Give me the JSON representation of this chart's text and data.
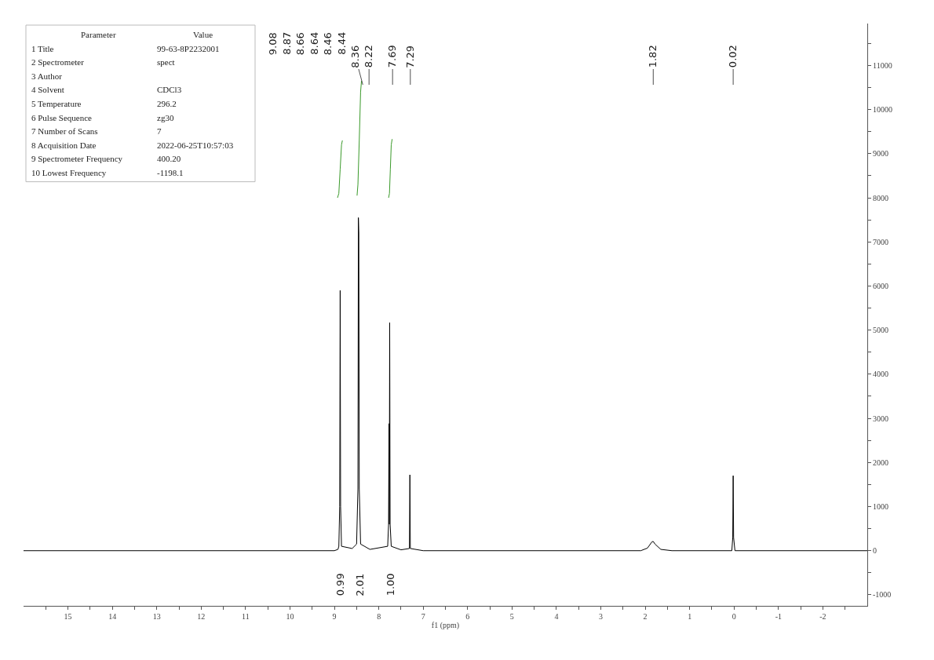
{
  "chart_data": {
    "type": "line",
    "xlabel": "f1 (ppm)",
    "annotations": [
      "9.08",
      "8.87",
      "8.66",
      "8.64",
      "8.46",
      "8.44",
      {
        "text": "8.36",
        "x": 8.36
      },
      {
        "text": "8.22",
        "x": 8.22
      },
      {
        "text": "7.69",
        "x": 7.69
      },
      {
        "text": "7.29",
        "x": 7.29
      },
      {
        "text": "1.82",
        "x": 1.82
      },
      {
        "text": "0.02",
        "x": 0.02
      },
      "0.99",
      "2.01",
      "1.00",
      "Parameter\tValue",
      "1 Title\t99-63-8P2232001",
      "2 Spectrometer\tspect",
      "3 Author",
      "4 Solvent\tCDCl3",
      "5 Temperature\t296.2",
      "6 Pulse Sequence\tzg30",
      "7 Number of Scans\t7",
      "8 Acquisition Date\t2022-06-25T10:57:03",
      "9 Spectrometer Frequency\t400.20",
      "10 Lowest Frequency\t-1198.1"
    ],
    "series": [
      {
        "color": "#000000",
        "x": [
          16,
          9.0,
          8.92,
          8.9,
          8.88,
          8.87,
          8.86,
          8.84,
          8.6,
          8.5,
          8.47,
          8.46,
          8.45,
          8.44,
          8.41,
          8.2,
          7.8,
          7.78,
          7.77,
          7.765,
          7.76,
          7.755,
          7.745,
          7.72,
          7.5,
          7.31,
          7.3,
          7.29,
          7.0,
          2.1,
          1.95,
          1.85,
          1.82,
          1.78,
          1.65,
          1.4,
          0.05,
          0.03,
          0.02,
          0.01,
          -0.02,
          -3
        ],
        "values": [
          0,
          0,
          30,
          100,
          1000,
          5900,
          1000,
          100,
          50,
          150,
          1400,
          7550,
          7200,
          1400,
          150,
          30,
          100,
          600,
          2880,
          600,
          2520,
          5170,
          600,
          100,
          20,
          50,
          1720,
          50,
          0,
          0,
          60,
          200,
          210,
          150,
          30,
          0,
          0,
          300,
          1700,
          300,
          0,
          0
        ]
      },
      {
        "color": "#3a9a2a",
        "x": [
          8.93,
          8.9,
          8.87,
          8.84,
          8.82
        ],
        "values": [
          8000,
          8100,
          8650,
          9200,
          9300
        ]
      },
      {
        "color": "#3a9a2a",
        "x": [
          8.49,
          8.47,
          8.44,
          8.41,
          8.39
        ],
        "values": [
          8050,
          8300,
          9300,
          10400,
          10650
        ]
      },
      {
        "color": "#3a9a2a",
        "x": [
          7.78,
          7.76,
          7.74,
          7.72,
          7.7
        ],
        "values": [
          8000,
          8100,
          8650,
          9200,
          9330
        ]
      }
    ],
    "xlim": [
      16,
      -3
    ],
    "ylim": [
      -1250,
      11950
    ],
    "xticks": [
      {
        "value": 15.5,
        "label": null
      },
      15,
      {
        "value": 14.5,
        "label": null
      },
      14,
      {
        "value": 13.5,
        "label": null
      },
      13,
      {
        "value": 12.5,
        "label": null
      },
      12,
      {
        "value": 11.5,
        "label": null
      },
      11,
      {
        "value": 10.5,
        "label": null
      },
      10,
      {
        "value": 9.5,
        "label": null
      },
      9,
      {
        "value": 8.5,
        "label": null
      },
      8,
      {
        "value": 7.5,
        "label": null
      },
      7,
      {
        "value": 6.5,
        "label": null
      },
      6,
      {
        "value": 5.5,
        "label": null
      },
      5,
      {
        "value": 4.5,
        "label": null
      },
      4,
      {
        "value": 3.5,
        "label": null
      },
      3,
      {
        "value": 2.5,
        "label": null
      },
      2,
      {
        "value": 1.5,
        "label": null
      },
      1,
      {
        "value": 0.5,
        "label": null
      },
      0,
      {
        "value": -0.5,
        "label": null
      },
      -1,
      {
        "value": -1.5,
        "label": null
      },
      -2,
      {
        "value": -2.5,
        "label": null
      }
    ],
    "yticks": [
      -1000,
      {
        "value": -500,
        "label": null
      },
      0,
      {
        "value": 500,
        "label": null
      },
      1000,
      {
        "value": 1500,
        "label": null
      },
      2000,
      {
        "value": 2500,
        "label": null
      },
      3000,
      {
        "value": 3500,
        "label": null
      },
      4000,
      {
        "value": 4500,
        "label": null
      },
      5000,
      {
        "value": 5500,
        "label": null
      },
      6000,
      {
        "value": 6500,
        "label": null
      },
      7000,
      {
        "value": 7500,
        "label": null
      },
      8000,
      {
        "value": 8500,
        "label": null
      },
      9000,
      {
        "value": 9500,
        "label": null
      },
      10000,
      {
        "value": 10500,
        "label": null
      },
      11000,
      {
        "value": 11500,
        "label": null
      }
    ],
    "marker": "none",
    "line_style": "solid"
  }
}
